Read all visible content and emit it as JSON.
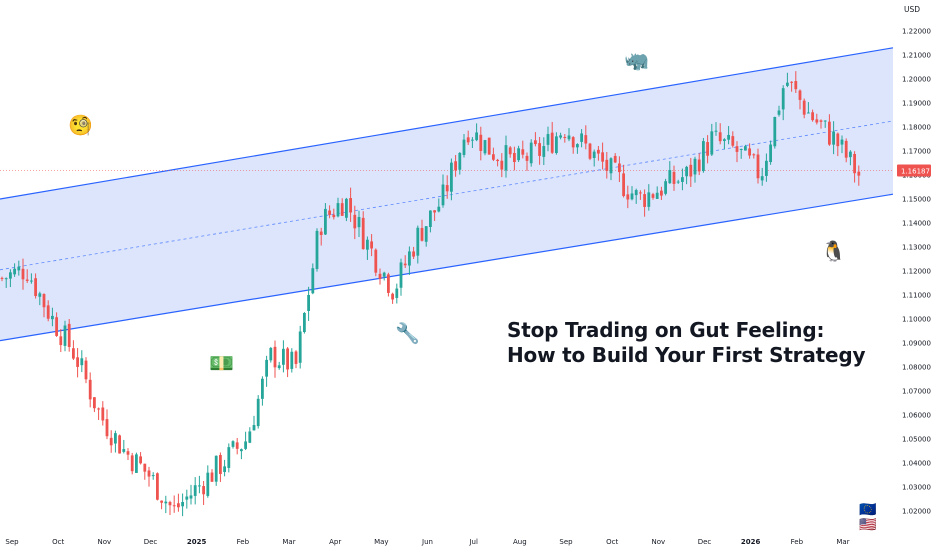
{
  "chart_data": {
    "type": "candlestick",
    "symbol": "EURUSD",
    "currency_label": "USD",
    "last_price": 1.16187,
    "last_price_label": "1.16187",
    "y_ticks": [
      "1.22000",
      "1.21000",
      "1.20000",
      "1.19000",
      "1.18000",
      "1.17000",
      "1.16000",
      "1.15000",
      "1.14000",
      "1.13000",
      "1.12000",
      "1.11000",
      "1.10000",
      "1.09000",
      "1.08000",
      "1.07000",
      "1.06000",
      "1.05000",
      "1.04000",
      "1.03000",
      "1.02000"
    ],
    "ylim": [
      1.015,
      1.225
    ],
    "x_ticks": [
      {
        "label": "Sep",
        "bold": false
      },
      {
        "label": "Oct",
        "bold": false
      },
      {
        "label": "Nov",
        "bold": false
      },
      {
        "label": "Dec",
        "bold": false
      },
      {
        "label": "2025",
        "bold": true
      },
      {
        "label": "Feb",
        "bold": false
      },
      {
        "label": "Mar",
        "bold": false
      },
      {
        "label": "Apr",
        "bold": false
      },
      {
        "label": "May",
        "bold": false
      },
      {
        "label": "Jun",
        "bold": false
      },
      {
        "label": "Jul",
        "bold": false
      },
      {
        "label": "Aug",
        "bold": false
      },
      {
        "label": "Sep",
        "bold": false
      },
      {
        "label": "Oct",
        "bold": false
      },
      {
        "label": "Nov",
        "bold": false
      },
      {
        "label": "Dec",
        "bold": false
      },
      {
        "label": "2026",
        "bold": true
      },
      {
        "label": "Feb",
        "bold": false
      },
      {
        "label": "Mar",
        "bold": false
      }
    ],
    "trend_keypoints": [
      1.117,
      1.121,
      1.101,
      1.085,
      1.06,
      1.045,
      1.035,
      1.02,
      1.03,
      1.04,
      1.05,
      1.085,
      1.08,
      1.14,
      1.15,
      1.13,
      1.112,
      1.135,
      1.15,
      1.18,
      1.17,
      1.165,
      1.17,
      1.18,
      1.17,
      1.16,
      1.15,
      1.155,
      1.16,
      1.175,
      1.17,
      1.16,
      1.2,
      1.185,
      1.175,
      1.16
    ],
    "channel": {
      "upper_line": {
        "start_value": 1.15,
        "end_value": 1.213
      },
      "lower_line": {
        "start_value": 1.091,
        "end_value": 1.152
      },
      "fill_color": "#d6e0fb",
      "line_color": "#2962ff"
    },
    "colors": {
      "up": "#26a69a",
      "down": "#ef5350",
      "price_tag": "#ef5350"
    }
  },
  "headline": {
    "line1": "Stop Trading on Gut Feeling:",
    "line2": "How to Build Your First Strategy"
  },
  "emojis": {
    "monocle": "🧐",
    "rhino": "🦏",
    "penguin": "🐧",
    "wrench": "🔧",
    "money": "💵"
  },
  "flags": {
    "eu": "🇪🇺",
    "us": "🇺🇸"
  }
}
